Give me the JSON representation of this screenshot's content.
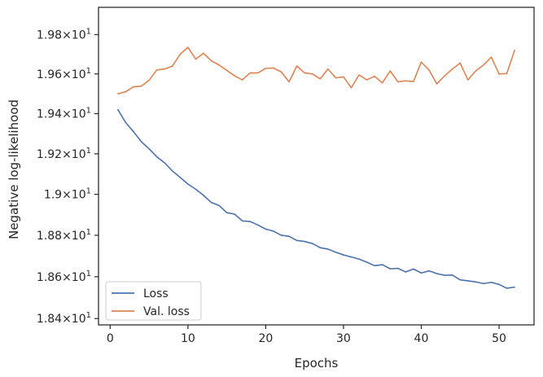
{
  "chart_data": {
    "type": "line",
    "xlabel": "Epochs",
    "ylabel": "Negative log-likelihood",
    "xlim": [
      -1.5,
      54.5
    ],
    "ylim": [
      18.37,
      19.94
    ],
    "y_scale": "log",
    "xticks": [
      0,
      10,
      20,
      30,
      40,
      50
    ],
    "xtick_labels": [
      "0",
      "10",
      "20",
      "30",
      "40",
      "50"
    ],
    "yticks": [
      18.4,
      18.6,
      18.8,
      19.0,
      19.2,
      19.4,
      19.6,
      19.8
    ],
    "ytick_labels": [
      {
        "mant": "1.84",
        "exp": "1"
      },
      {
        "mant": "1.86",
        "exp": "1"
      },
      {
        "mant": "1.88",
        "exp": "1"
      },
      {
        "mant": "1.9",
        "exp": "1"
      },
      {
        "mant": "1.92",
        "exp": "1"
      },
      {
        "mant": "1.94",
        "exp": "1"
      },
      {
        "mant": "1.96",
        "exp": "1"
      },
      {
        "mant": "1.98",
        "exp": "1"
      }
    ],
    "grid": false,
    "legend_position": "lower-left",
    "x": [
      1,
      2,
      3,
      4,
      5,
      6,
      7,
      8,
      9,
      10,
      11,
      12,
      13,
      14,
      15,
      16,
      17,
      18,
      19,
      20,
      21,
      22,
      23,
      24,
      25,
      26,
      27,
      28,
      29,
      30,
      31,
      32,
      33,
      34,
      35,
      36,
      37,
      38,
      39,
      40,
      41,
      42,
      43,
      44,
      45,
      46,
      47,
      48,
      49,
      50,
      51,
      52
    ],
    "series": [
      {
        "name": "Loss",
        "color": "#4c72b0",
        "values": [
          19.42,
          19.355,
          19.31,
          19.26,
          19.225,
          19.185,
          19.155,
          19.115,
          19.083,
          19.05,
          19.025,
          18.995,
          18.96,
          18.945,
          18.91,
          18.903,
          18.87,
          18.867,
          18.85,
          18.83,
          18.82,
          18.8,
          18.795,
          18.775,
          18.77,
          18.76,
          18.74,
          18.733,
          18.718,
          18.705,
          18.695,
          18.685,
          18.67,
          18.653,
          18.658,
          18.638,
          18.64,
          18.623,
          18.637,
          18.618,
          18.628,
          18.615,
          18.607,
          18.608,
          18.585,
          18.58,
          18.575,
          18.567,
          18.573,
          18.563,
          18.545,
          18.55
        ]
      },
      {
        "name": "Val. loss",
        "color": "#dd8452",
        "values": [
          19.5,
          19.51,
          19.535,
          19.538,
          19.568,
          19.62,
          19.625,
          19.64,
          19.7,
          19.735,
          19.675,
          19.705,
          19.667,
          19.645,
          19.618,
          19.59,
          19.57,
          19.605,
          19.605,
          19.628,
          19.63,
          19.61,
          19.56,
          19.64,
          19.605,
          19.6,
          19.575,
          19.625,
          19.58,
          19.585,
          19.53,
          19.595,
          19.57,
          19.588,
          19.555,
          19.615,
          19.56,
          19.565,
          19.562,
          19.66,
          19.62,
          19.55,
          19.59,
          19.625,
          19.655,
          19.57,
          19.615,
          19.645,
          19.685,
          19.6,
          19.602,
          19.72
        ]
      }
    ]
  }
}
